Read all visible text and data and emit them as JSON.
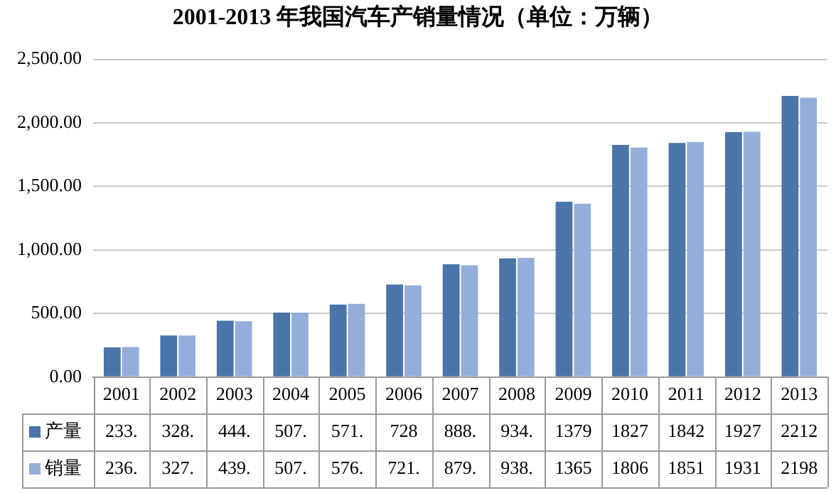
{
  "chart_data": {
    "type": "bar",
    "title": "2001-2013 年我国汽车产销量情况（单位：万辆）",
    "categories": [
      "2001",
      "2002",
      "2003",
      "2004",
      "2005",
      "2006",
      "2007",
      "2008",
      "2009",
      "2010",
      "2011",
      "2012",
      "2013"
    ],
    "series": [
      {
        "name": "产量",
        "color": "#4a74aa",
        "values": [
          233,
          328,
          444,
          507,
          571,
          728,
          888,
          934,
          1379,
          1827,
          1842,
          1927,
          2212
        ],
        "value_labels": [
          "233.",
          "328.",
          "444.",
          "507.",
          "571.",
          "728",
          "888.",
          "934.",
          "1379",
          "1827",
          "1842",
          "1927",
          "2212"
        ]
      },
      {
        "name": "销量",
        "color": "#94aedb",
        "values": [
          236,
          327,
          439,
          507,
          576,
          721,
          879,
          938,
          1365,
          1806,
          1851,
          1931,
          2198
        ],
        "value_labels": [
          "236.",
          "327.",
          "439.",
          "507.",
          "576.",
          "721.",
          "879.",
          "938.",
          "1365",
          "1806",
          "1851",
          "1931",
          "2198"
        ]
      }
    ],
    "ylim": [
      0,
      2500
    ],
    "yticks": [
      {
        "value": 0,
        "label": "0.00"
      },
      {
        "value": 500,
        "label": "500.00"
      },
      {
        "value": 1000,
        "label": "1,000.00"
      },
      {
        "value": 1500,
        "label": "1,500.00"
      },
      {
        "value": 2000,
        "label": "2,000.00"
      },
      {
        "value": 2500,
        "label": "2,500.00"
      }
    ],
    "grid": "y",
    "legend": "bottom left"
  }
}
